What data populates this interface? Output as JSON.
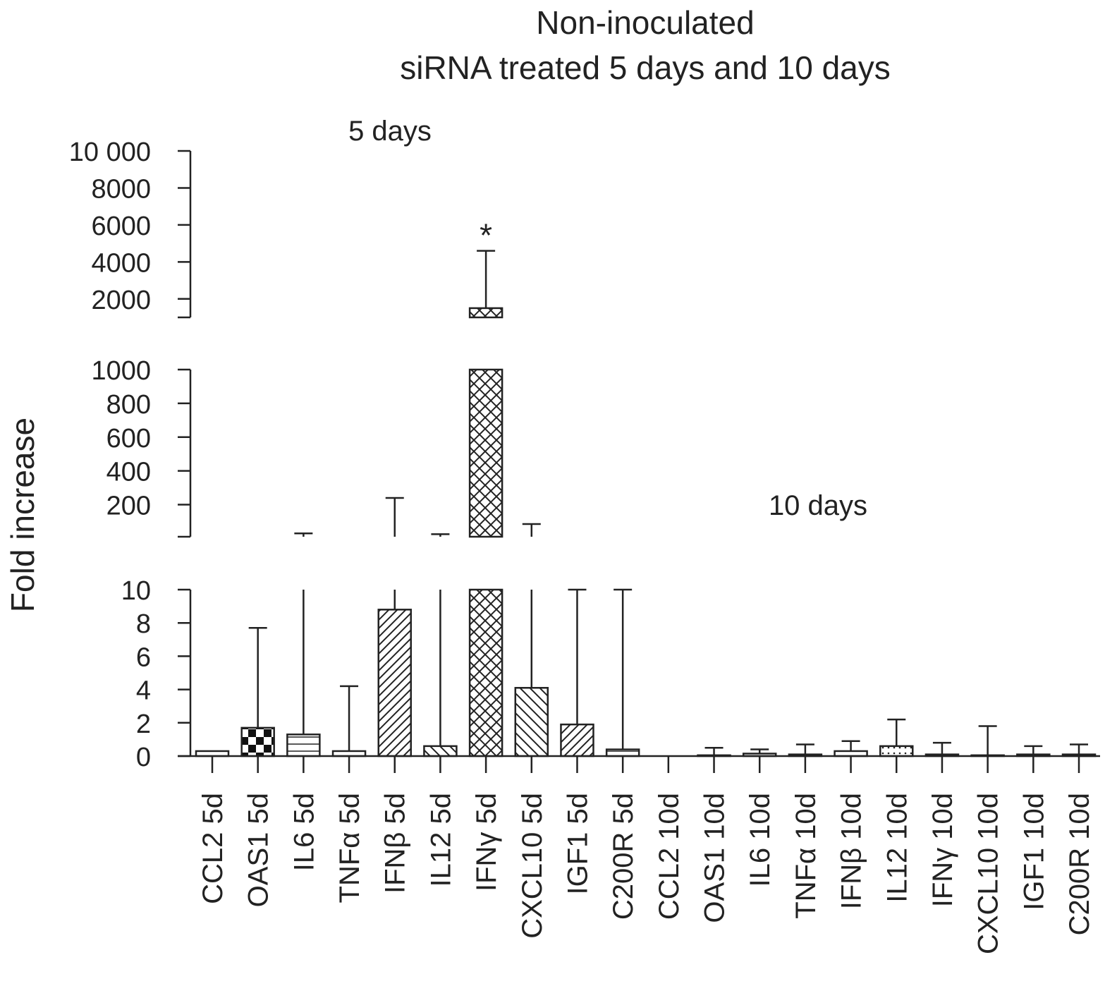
{
  "chart_data": {
    "type": "bar",
    "title": "Non-inoculated",
    "subtitle": "siRNA treated 5 days and 10 days",
    "ylabel": "Fold increase",
    "xlabel": "",
    "group_labels": [
      "5 days",
      "10 days"
    ],
    "annotation": "*",
    "axis_break": true,
    "grid": false,
    "legend": "none",
    "segments": [
      {
        "name": "bottom",
        "ylim": [
          0,
          10
        ],
        "ticks": [
          0,
          2,
          4,
          6,
          8,
          10
        ],
        "tick_labels": [
          "0",
          "2",
          "4",
          "6",
          "8",
          "10"
        ]
      },
      {
        "name": "middle",
        "ylim": [
          10,
          1000
        ],
        "ticks": [
          200,
          400,
          600,
          800,
          1000
        ],
        "tick_labels": [
          "200",
          "400",
          "600",
          "800",
          "1000"
        ]
      },
      {
        "name": "top",
        "ylim": [
          1000,
          10000
        ],
        "ticks": [
          2000,
          4000,
          6000,
          8000,
          10000
        ],
        "tick_labels": [
          "2000",
          "4000",
          "6000",
          "8000",
          "10 000"
        ]
      }
    ],
    "categories": [
      "CCL2 5d",
      "OAS1 5d",
      "IL6 5d",
      "TNFα 5d",
      "IFNβ 5d",
      "IL12 5d",
      "IFNγ 5d",
      "CXCL10 5d",
      "IGF1 5d",
      "C200R 5d",
      "CCL2 10d",
      "OAS1 10d",
      "IL6 10d",
      "TNFα 10d",
      "IFNβ 10d",
      "IL12 10d",
      "IFNγ 10d",
      "CXCL10 10d",
      "IGF1 10d",
      "C200R 10d"
    ],
    "values": [
      0.3,
      1.7,
      1.3,
      0.3,
      8.8,
      0.6,
      1500,
      4.1,
      1.9,
      0.4,
      0,
      0.05,
      0.15,
      0.1,
      0.3,
      0.6,
      0.1,
      0.05,
      0.1,
      0.1
    ],
    "error_upper": [
      0.3,
      7.7,
      30,
      4.2,
      240,
      25,
      4600,
      85,
      10,
      10,
      0,
      0.5,
      0.4,
      0.7,
      0.9,
      2.2,
      0.8,
      1.8,
      0.6,
      0.7
    ],
    "patterns": [
      "horizontal",
      "checker",
      "horizontal",
      "horizontal",
      "diag-right",
      "diag-left",
      "crosshatch",
      "diag-left",
      "diag-right",
      "horizontal",
      "none",
      "none",
      "horizontal",
      "horizontal",
      "horizontal",
      "dots",
      "horizontal",
      "none",
      "horizontal",
      "horizontal"
    ],
    "significance": [
      {
        "category": "IFNγ 5d",
        "label": "*"
      }
    ]
  }
}
